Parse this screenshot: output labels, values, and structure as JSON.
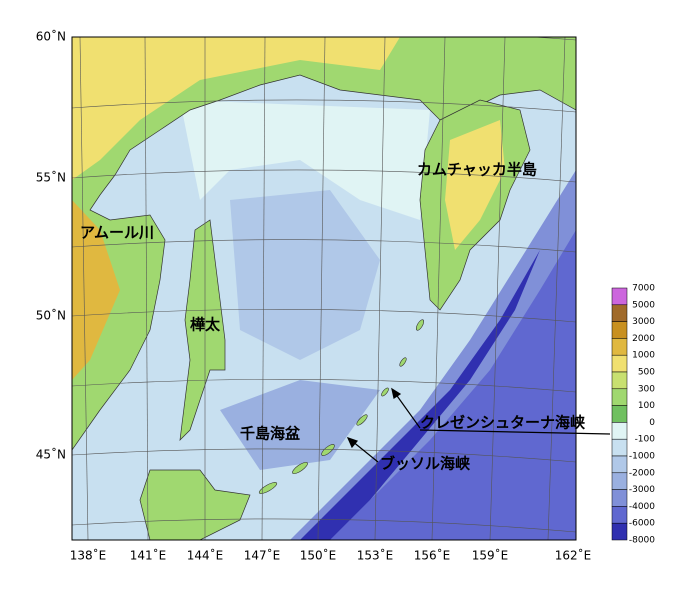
{
  "map": {
    "lat_labels": [
      "60˚N",
      "55˚N",
      "50˚N",
      "45˚N"
    ],
    "lon_labels": [
      "138˚E",
      "141˚E",
      "144˚E",
      "147˚E",
      "150˚E",
      "153˚E",
      "156˚E",
      "159˚E",
      "162˚E"
    ],
    "places": [
      "カムチャッカ半島",
      "アムール川",
      "樺太",
      "千島海盆",
      "クレゼンシュターナ海峡",
      "ブッソル海峡"
    ]
  },
  "colorbar": {
    "levels": [
      7000,
      5000,
      3000,
      2000,
      1000,
      500,
      300,
      100,
      0,
      -100,
      -1000,
      -2000,
      -3000,
      -4000,
      -6000,
      -8000
    ],
    "colors": [
      "#cc66dd",
      "#a06a2a",
      "#c89020",
      "#e0b840",
      "#f0e070",
      "#c8e070",
      "#a0d870",
      "#70c060",
      "#e0f4f4",
      "#c8e0f0",
      "#b0c8e8",
      "#9ab0e0",
      "#8090d8",
      "#6068d0",
      "#3030b0"
    ]
  }
}
